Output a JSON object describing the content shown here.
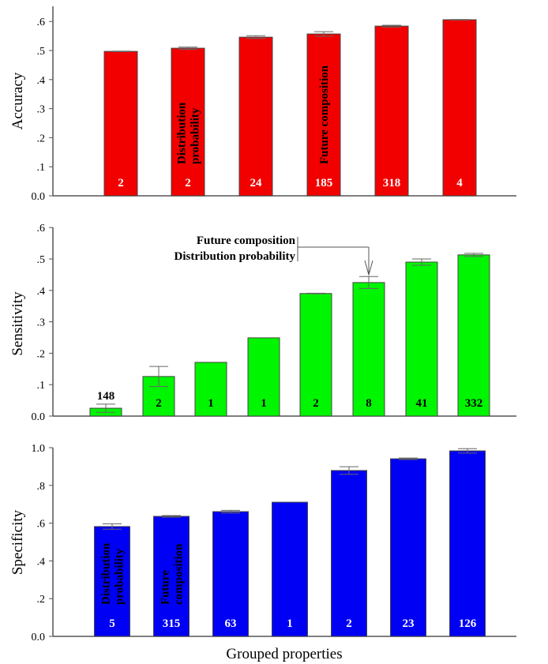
{
  "chart_data": [
    {
      "type": "bar",
      "title": "",
      "xlabel": "",
      "ylabel": "Accuracy",
      "ylim": [
        0,
        0.65
      ],
      "yticks": [
        0,
        0.1,
        0.2,
        0.3,
        0.4,
        0.5,
        0.6
      ],
      "ytick_labels": [
        "0.0",
        ".1",
        ".2",
        ".3",
        ".4",
        ".5",
        ".6"
      ],
      "color": "#f20000",
      "bar_label_color": "#ffffff",
      "values": [
        0.497,
        0.508,
        0.546,
        0.557,
        0.584,
        0.606
      ],
      "errors": [
        0.001,
        0.004,
        0.005,
        0.008,
        0.003,
        0.001
      ],
      "bar_labels": [
        "2",
        "2",
        "24",
        "185",
        "318",
        "4"
      ],
      "bar_labels_position": "inside-bottom",
      "annotations": [
        {
          "bar_index": 1,
          "text": [
            "Distribution",
            "probability"
          ],
          "orientation": "vertical"
        },
        {
          "bar_index": 3,
          "text": [
            "Future composition"
          ],
          "orientation": "vertical"
        }
      ]
    },
    {
      "type": "bar",
      "title": "",
      "xlabel": "",
      "ylabel": "Sensitivity",
      "ylim": [
        0,
        0.6
      ],
      "yticks": [
        0,
        0.1,
        0.2,
        0.3,
        0.4,
        0.5,
        0.6
      ],
      "ytick_labels": [
        "0.0",
        ".1",
        ".2",
        ".3",
        ".4",
        ".5",
        ".6"
      ],
      "color": "#00f500",
      "bar_label_color": "#000000",
      "values": [
        0.025,
        0.126,
        0.171,
        0.249,
        0.39,
        0.425,
        0.49,
        0.513
      ],
      "errors": [
        0.013,
        0.032,
        0.0,
        0.0,
        0.001,
        0.019,
        0.01,
        0.005
      ],
      "bar_labels": [
        "148",
        "2",
        "1",
        "1",
        "2",
        "8",
        "41",
        "332"
      ],
      "bar_labels_position": "inside-bottom",
      "first_label_above": true,
      "annotations": [
        {
          "bar_index": 5,
          "text": [
            "Future composition",
            "Distribution probability"
          ],
          "orientation": "horizontal",
          "arrow": true
        }
      ]
    },
    {
      "type": "bar",
      "title": "",
      "xlabel": "Grouped properties",
      "ylabel": "Specificity",
      "ylim": [
        0,
        1.0
      ],
      "yticks": [
        0,
        0.2,
        0.4,
        0.6,
        0.8,
        1.0
      ],
      "ytick_labels": [
        "0.0",
        ".2",
        ".4",
        ".6",
        ".8",
        "1.0"
      ],
      "color": "#0000f5",
      "bar_label_color": "#ffffff",
      "values": [
        0.582,
        0.636,
        0.661,
        0.711,
        0.879,
        0.941,
        0.983
      ],
      "errors": [
        0.014,
        0.004,
        0.007,
        0.0,
        0.02,
        0.004,
        0.012
      ],
      "bar_labels": [
        "5",
        "315",
        "63",
        "1",
        "2",
        "23",
        "126"
      ],
      "bar_labels_position": "inside-bottom",
      "annotations": [
        {
          "bar_index": 0,
          "text": [
            "Distribution",
            "probability"
          ],
          "orientation": "vertical"
        },
        {
          "bar_index": 1,
          "text": [
            "Future",
            "composition"
          ],
          "orientation": "vertical"
        }
      ]
    }
  ]
}
